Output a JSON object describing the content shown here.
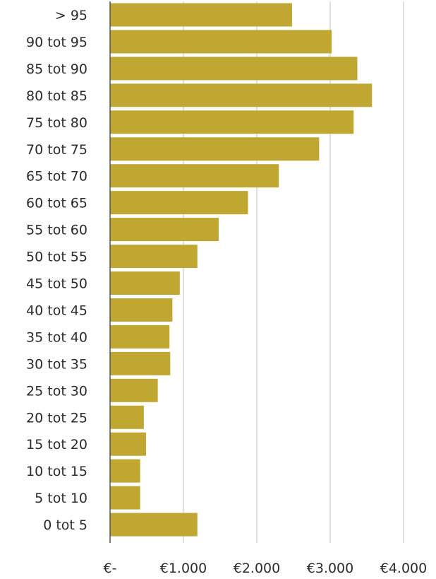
{
  "colors": {
    "bar": "#bfa732",
    "grid": "#d6d6da",
    "axis": "#555555",
    "text": "#2b2b2b",
    "background": "#ffffff"
  },
  "chart_data": {
    "type": "bar",
    "orientation": "horizontal",
    "title": "",
    "xlabel": "",
    "ylabel": "",
    "categories": [
      "> 95",
      "90 tot 95",
      "85 tot 90",
      "80 tot 85",
      "75 tot 80",
      "70 tot 75",
      "65 tot 70",
      "60 tot 65",
      "55 tot 60",
      "50 tot 55",
      "45 tot 50",
      "40 tot 45",
      "35 tot 40",
      "30 tot 35",
      "25 tot 30",
      "20 tot 25",
      "15 tot 20",
      "10 tot 15",
      "5 tot 10",
      "0 tot 5"
    ],
    "values": [
      2480,
      3020,
      3370,
      3570,
      3320,
      2850,
      2300,
      1880,
      1480,
      1190,
      950,
      850,
      810,
      820,
      650,
      460,
      490,
      410,
      410,
      1190
    ],
    "xlim": [
      0,
      4000
    ],
    "xticks": [
      0,
      1000,
      2000,
      3000,
      4000
    ],
    "xtick_labels": [
      "€-",
      "€1.000",
      "€2.000",
      "€3.000",
      "€4.000"
    ],
    "grid": true,
    "legend": "none"
  }
}
